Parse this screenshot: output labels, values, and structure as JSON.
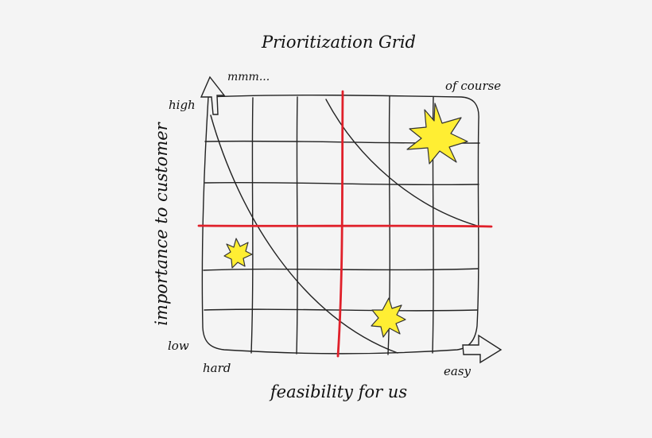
{
  "title": "Prioritization Grid",
  "x_axis": {
    "label": "feasibility for us",
    "low_label": "hard",
    "high_label": "easy"
  },
  "y_axis": {
    "label": "importance to customer",
    "low_label": "low",
    "high_label": "high"
  },
  "corner_labels": {
    "top_left": "mmm...",
    "top_right": "of course"
  },
  "colors": {
    "background": "#f4f4f4",
    "grid_lines": "#222222",
    "divider_lines": "#e0202a",
    "star_fill": "#ffee33",
    "star_stroke": "#333333"
  },
  "highlights": [
    {
      "name": "star-top-right",
      "quadrant": "high-importance-easy"
    },
    {
      "name": "star-left-middle",
      "quadrant": "low-importance-hard"
    },
    {
      "name": "star-bottom-center",
      "quadrant": "low-importance-easy"
    }
  ]
}
